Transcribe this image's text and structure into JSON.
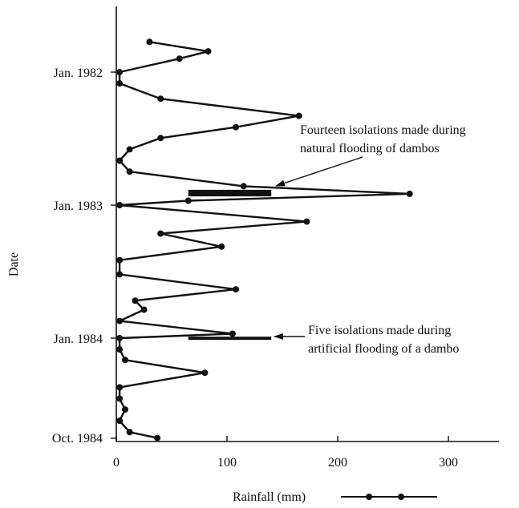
{
  "chart_data": {
    "type": "line",
    "orientation": "vertical-time",
    "title": "",
    "xlabel": "Rainfall (mm)",
    "ylabel": "Date",
    "xlim": [
      0,
      340
    ],
    "x_ticks": [
      0,
      100,
      200,
      300
    ],
    "ylim": [
      "Nov. 1981",
      "Oct. 1984"
    ],
    "y_ticks": [
      {
        "label": "Jan. 1982",
        "date": "1982-01"
      },
      {
        "label": "Jan. 1983",
        "date": "1983-01"
      },
      {
        "label": "Jan. 1984",
        "date": "1984-01"
      },
      {
        "label": "Oct. 1984",
        "date": "1984-10"
      }
    ],
    "grid": false,
    "legend": {
      "position": "bottom",
      "entries": [
        "Rainfall (mm)"
      ]
    },
    "series": [
      {
        "name": "Rainfall (mm)",
        "marker": "circle",
        "color": "#111111",
        "points": [
          {
            "date": "1981-10-10",
            "rainfall": 30
          },
          {
            "date": "1981-11-05",
            "rainfall": 83
          },
          {
            "date": "1981-11-25",
            "rainfall": 57
          },
          {
            "date": "1982-01-01",
            "rainfall": 3
          },
          {
            "date": "1982-02-01",
            "rainfall": 3
          },
          {
            "date": "1982-03-15",
            "rainfall": 40
          },
          {
            "date": "1982-05-01",
            "rainfall": 165
          },
          {
            "date": "1982-06-01",
            "rainfall": 108
          },
          {
            "date": "1982-07-01",
            "rainfall": 40
          },
          {
            "date": "1982-08-01",
            "rainfall": 12
          },
          {
            "date": "1982-09-01",
            "rainfall": 3
          },
          {
            "date": "1982-10-01",
            "rainfall": 12
          },
          {
            "date": "1982-11-10",
            "rainfall": 115
          },
          {
            "date": "1982-12-01",
            "rainfall": 265
          },
          {
            "date": "1982-12-20",
            "rainfall": 65
          },
          {
            "date": "1983-01-01",
            "rainfall": 3
          },
          {
            "date": "1983-02-15",
            "rainfall": 172
          },
          {
            "date": "1983-03-20",
            "rainfall": 40
          },
          {
            "date": "1983-04-25",
            "rainfall": 95
          },
          {
            "date": "1983-06-01",
            "rainfall": 3
          },
          {
            "date": "1983-07-10",
            "rainfall": 3
          },
          {
            "date": "1983-08-20",
            "rainfall": 108
          },
          {
            "date": "1983-09-20",
            "rainfall": 17
          },
          {
            "date": "1983-10-15",
            "rainfall": 25
          },
          {
            "date": "1983-11-15",
            "rainfall": 3
          },
          {
            "date": "1983-12-20",
            "rainfall": 105
          },
          {
            "date": "1984-01-01",
            "rainfall": 3
          },
          {
            "date": "1984-02-01",
            "rainfall": 3
          },
          {
            "date": "1984-03-01",
            "rainfall": 8
          },
          {
            "date": "1984-04-05",
            "rainfall": 80
          },
          {
            "date": "1984-05-15",
            "rainfall": 3
          },
          {
            "date": "1984-06-15",
            "rainfall": 3
          },
          {
            "date": "1984-07-15",
            "rainfall": 8
          },
          {
            "date": "1984-08-15",
            "rainfall": 3
          },
          {
            "date": "1984-09-15",
            "rainfall": 12
          },
          {
            "date": "1984-10-01",
            "rainfall": 37
          }
        ]
      }
    ],
    "isolation_periods": [
      {
        "name": "natural-flooding",
        "start": "1982-11-20",
        "end": "1982-12-08",
        "rainfall_from": 65,
        "rainfall_to": 140
      },
      {
        "name": "artificial-flooding",
        "start": "1983-12-28",
        "end": "1984-01-01",
        "rainfall_from": 65,
        "rainfall_to": 140
      }
    ],
    "annotations": [
      {
        "line1": "Fourteen isolations made during",
        "line2": "natural flooding of dambos"
      },
      {
        "line1": "Five isolations made during",
        "line2": "artificial flooding of a dambo"
      }
    ]
  }
}
